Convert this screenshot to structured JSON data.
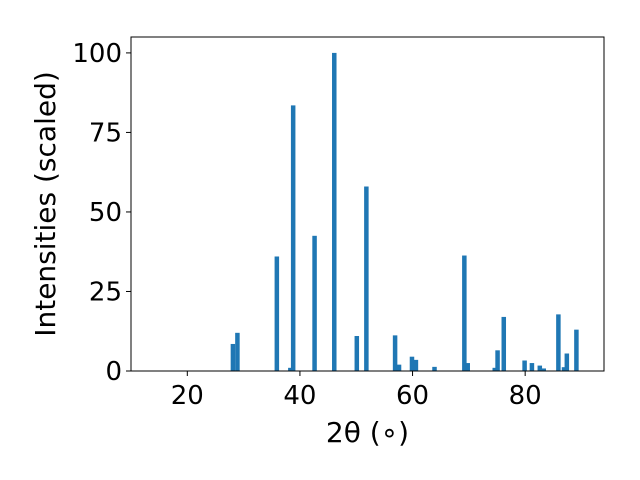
{
  "chart_data": {
    "type": "bar",
    "title": "",
    "xlabel": "2θ (∘)",
    "ylabel": "Intensities (scaled)",
    "xlim": [
      10,
      94
    ],
    "ylim": [
      0,
      105
    ],
    "xticks": [
      20,
      40,
      60,
      80
    ],
    "yticks": [
      0,
      25,
      50,
      75,
      100
    ],
    "bar_width": 0.8,
    "color": "#1f77b4",
    "x": [
      28.1,
      28.9,
      35.9,
      38.3,
      38.8,
      42.6,
      46.1,
      50.1,
      51.8,
      56.9,
      57.6,
      59.9,
      60.6,
      63.9,
      69.2,
      69.8,
      74.6,
      75.1,
      76.2,
      79.9,
      81.2,
      82.6,
      83.3,
      85.9,
      86.9,
      87.4,
      89.1
    ],
    "values": [
      8.5,
      12,
      36,
      1,
      83.5,
      42.5,
      100,
      11,
      58,
      11.2,
      2,
      4.5,
      3.5,
      1.3,
      36.3,
      2.5,
      1,
      6.5,
      17,
      3.3,
      2.5,
      1.7,
      0.8,
      17.8,
      1.2,
      5.5,
      13
    ]
  }
}
